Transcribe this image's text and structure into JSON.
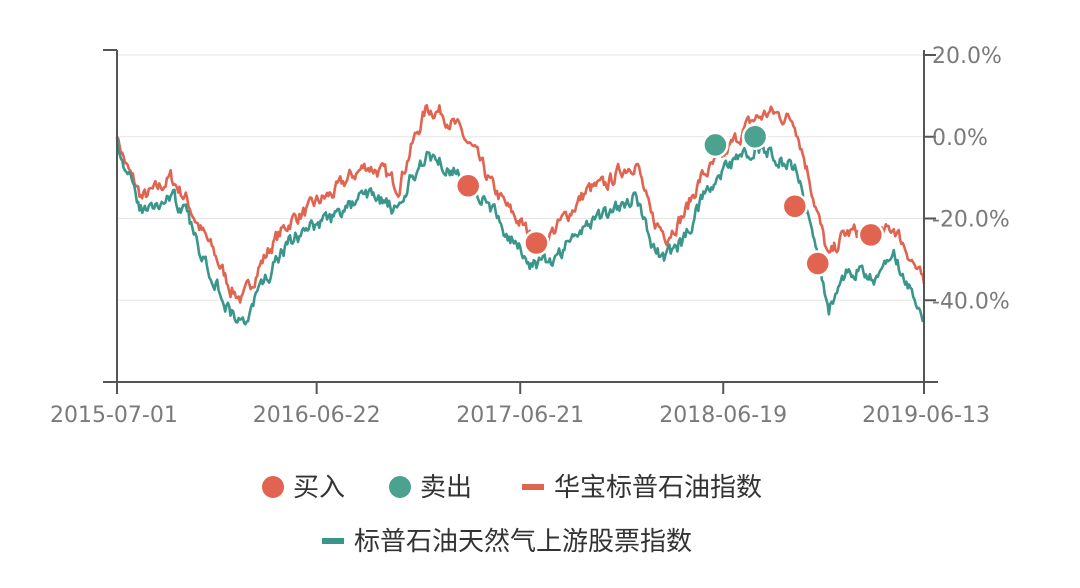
{
  "chart_data": {
    "type": "line",
    "title": "",
    "xlabel": "",
    "ylabel": "",
    "x_tick_labels": [
      "2015-07-01",
      "2016-06-22",
      "2017-06-21",
      "2018-06-19",
      "2019-06-13"
    ],
    "x_range": [
      "2015-07-01",
      "2019-06-13"
    ],
    "y_tick_labels": [
      "20.0%",
      "0.0%",
      "-20.0%",
      "-40.0%"
    ],
    "y_ticks": [
      20,
      0,
      -20,
      -40
    ],
    "ylim": [
      -60,
      20
    ],
    "y_axis_side": "right",
    "y_unit": "%",
    "grid": true,
    "legend_position": "bottom",
    "colors": {
      "buy": "#e06450",
      "sell": "#4ba38f",
      "fund": "#e06450",
      "index": "#3a968a",
      "axis": "#555555",
      "grid": "#e6e6e6",
      "tick_text": "#7a7a7a"
    },
    "series": [
      {
        "name": "华宝标普石油指数",
        "color": "#e06450",
        "x": [
          "2015-07-01",
          "2015-07-20",
          "2015-08-15",
          "2015-09-10",
          "2015-10-05",
          "2015-11-01",
          "2015-11-25",
          "2015-12-20",
          "2016-01-20",
          "2016-02-11",
          "2016-03-10",
          "2016-04-10",
          "2016-05-10",
          "2016-06-08",
          "2016-06-22",
          "2016-07-20",
          "2016-08-20",
          "2016-09-20",
          "2016-10-20",
          "2016-11-15",
          "2016-12-10",
          "2017-01-05",
          "2017-02-01",
          "2017-03-01",
          "2017-04-01",
          "2017-05-01",
          "2017-06-01",
          "2017-06-21",
          "2017-07-20",
          "2017-08-20",
          "2017-09-20",
          "2017-10-20",
          "2017-11-20",
          "2017-12-20",
          "2018-01-15",
          "2018-02-10",
          "2018-03-10",
          "2018-04-10",
          "2018-05-10",
          "2018-06-19",
          "2018-07-10",
          "2018-08-10",
          "2018-09-10",
          "2018-10-03",
          "2018-10-25",
          "2018-11-20",
          "2018-12-10",
          "2018-12-25",
          "2019-01-20",
          "2019-02-20",
          "2019-03-20",
          "2019-04-20",
          "2019-05-15",
          "2019-06-13"
        ],
        "values": [
          0,
          -8,
          -15,
          -13,
          -10,
          -15,
          -22,
          -28,
          -37,
          -40,
          -32,
          -25,
          -20,
          -18,
          -16,
          -14,
          -10,
          -7,
          -9,
          -12,
          -2,
          7,
          6,
          2,
          -4,
          -12,
          -18,
          -21,
          -26,
          -23,
          -18,
          -13,
          -12,
          -8,
          -6,
          -20,
          -24,
          -19,
          -10,
          -5,
          -1,
          4,
          6,
          5,
          4,
          -10,
          -22,
          -30,
          -24,
          -23,
          -25,
          -22,
          -28,
          -36
        ]
      },
      {
        "name": "标普石油天然气上游股票指数",
        "color": "#3a968a",
        "x": [
          "2015-07-01",
          "2015-07-20",
          "2015-08-15",
          "2015-09-10",
          "2015-10-05",
          "2015-11-01",
          "2015-11-25",
          "2015-12-20",
          "2016-01-20",
          "2016-02-11",
          "2016-03-10",
          "2016-04-10",
          "2016-05-10",
          "2016-06-08",
          "2016-06-22",
          "2016-07-20",
          "2016-08-20",
          "2016-09-20",
          "2016-10-20",
          "2016-11-15",
          "2016-12-10",
          "2017-01-05",
          "2017-02-01",
          "2017-03-01",
          "2017-04-01",
          "2017-05-01",
          "2017-06-01",
          "2017-06-21",
          "2017-07-20",
          "2017-08-20",
          "2017-09-20",
          "2017-10-20",
          "2017-11-20",
          "2017-12-20",
          "2018-01-15",
          "2018-02-10",
          "2018-03-10",
          "2018-04-10",
          "2018-05-10",
          "2018-06-19",
          "2018-07-10",
          "2018-08-10",
          "2018-09-10",
          "2018-10-03",
          "2018-10-25",
          "2018-11-20",
          "2018-12-10",
          "2018-12-25",
          "2019-01-20",
          "2019-02-20",
          "2019-03-20",
          "2019-04-20",
          "2019-05-15",
          "2019-06-13"
        ],
        "values": [
          0,
          -10,
          -18,
          -17,
          -14,
          -19,
          -27,
          -34,
          -43,
          -46,
          -38,
          -31,
          -25,
          -23,
          -21,
          -20,
          -17,
          -14,
          -16,
          -19,
          -10,
          -4,
          -6,
          -9,
          -13,
          -18,
          -24,
          -28,
          -32,
          -30,
          -25,
          -21,
          -19,
          -16,
          -14,
          -27,
          -30,
          -25,
          -16,
          -9,
          -6,
          -3,
          -3,
          -6,
          -8,
          -20,
          -32,
          -42,
          -34,
          -33,
          -35,
          -30,
          -36,
          -44
        ]
      }
    ],
    "markers": {
      "buy": {
        "name": "买入",
        "color": "#e06450",
        "points": [
          {
            "x": "2017-03-20",
            "y": -12
          },
          {
            "x": "2017-07-20",
            "y": -26
          },
          {
            "x": "2018-10-25",
            "y": -17
          },
          {
            "x": "2018-12-05",
            "y": -31
          },
          {
            "x": "2019-03-10",
            "y": -24
          }
        ]
      },
      "sell": {
        "name": "卖出",
        "color": "#4ba38f",
        "points": [
          {
            "x": "2018-06-05",
            "y": -2
          },
          {
            "x": "2018-08-15",
            "y": 0
          }
        ]
      }
    }
  }
}
